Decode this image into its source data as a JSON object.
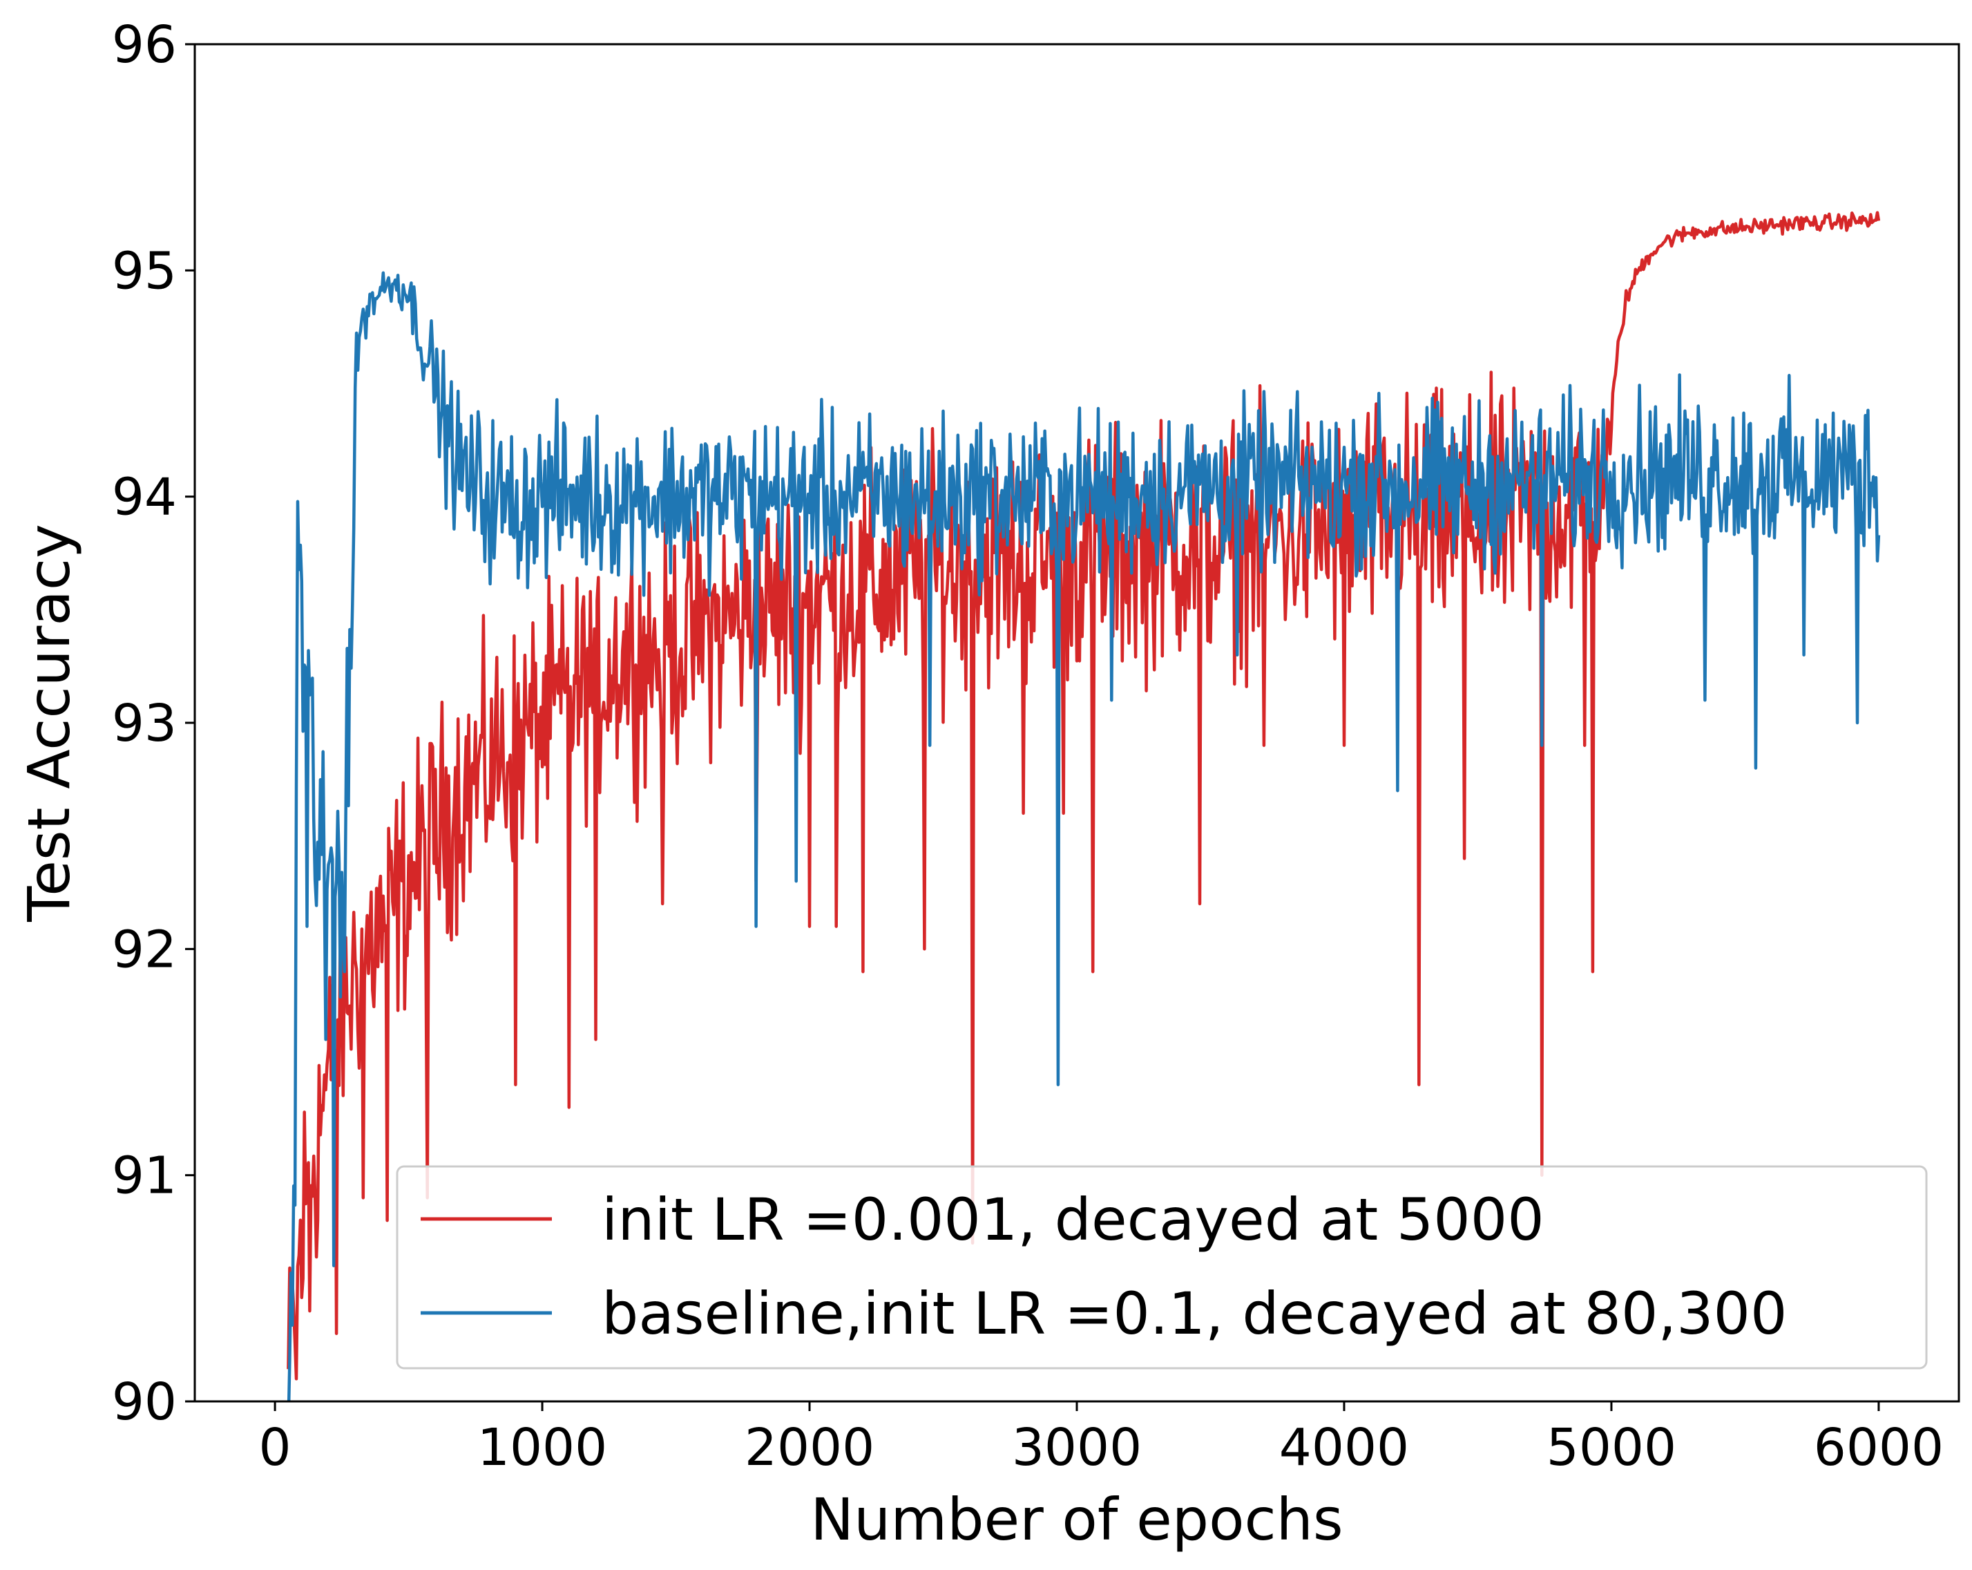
{
  "chart_data": {
    "type": "line",
    "title": "",
    "xlabel": "Number of epochs",
    "ylabel": "Test Accuracy",
    "xlim": [
      -300,
      6300
    ],
    "ylim": [
      90,
      96
    ],
    "xticks": [
      0,
      1000,
      2000,
      3000,
      4000,
      5000,
      6000
    ],
    "yticks": [
      90,
      91,
      92,
      93,
      94,
      95,
      96
    ],
    "grid": false,
    "legend_position": "lower-right",
    "series": [
      {
        "name": "init LR =0.001, decayed at 5000",
        "color": "#d62728",
        "x": [
          50,
          80,
          110,
          150,
          200,
          250,
          300,
          350,
          400,
          450,
          500,
          550,
          600,
          650,
          700,
          800,
          900,
          1000,
          1100,
          1200,
          1300,
          1400,
          1500,
          1600,
          1700,
          1800,
          1900,
          2000,
          2200,
          2400,
          2600,
          2800,
          3000,
          3200,
          3400,
          3600,
          3800,
          4000,
          4200,
          4400,
          4600,
          4800,
          4900,
          4950,
          5000,
          5020,
          5050,
          5100,
          5150,
          5200,
          5300,
          5400,
          5500,
          5600,
          5700,
          5800,
          5900,
          6000
        ],
        "y": [
          90.1,
          90.5,
          90.8,
          91.2,
          91.4,
          91.7,
          91.9,
          92.0,
          92.1,
          92.2,
          92.3,
          92.4,
          92.5,
          92.6,
          92.7,
          92.8,
          92.9,
          93.0,
          93.1,
          93.2,
          93.3,
          93.3,
          93.35,
          93.4,
          93.45,
          93.5,
          93.5,
          93.55,
          93.6,
          93.65,
          93.7,
          93.7,
          93.75,
          93.75,
          93.8,
          93.8,
          93.85,
          93.85,
          93.9,
          93.9,
          93.9,
          93.95,
          93.95,
          94.0,
          94.3,
          94.6,
          94.85,
          95.0,
          95.08,
          95.13,
          95.17,
          95.18,
          95.19,
          95.2,
          95.21,
          95.21,
          95.22,
          95.22
        ],
        "noise_amplitude": [
          0.4,
          0.6,
          0.6,
          0.55,
          0.5,
          0.45,
          0.45,
          0.45,
          0.45,
          0.45,
          0.45,
          0.45,
          0.45,
          0.45,
          0.45,
          0.45,
          0.45,
          0.45,
          0.45,
          0.45,
          0.45,
          0.45,
          0.45,
          0.45,
          0.45,
          0.45,
          0.45,
          0.45,
          0.45,
          0.45,
          0.45,
          0.45,
          0.45,
          0.45,
          0.45,
          0.45,
          0.45,
          0.45,
          0.45,
          0.45,
          0.45,
          0.45,
          0.45,
          0.3,
          0.1,
          0.06,
          0.04,
          0.03,
          0.03,
          0.03,
          0.03,
          0.03,
          0.03,
          0.03,
          0.03,
          0.03,
          0.03,
          0.03
        ],
        "spikes": [
          [
            80,
            90.1
          ],
          [
            130,
            90.4
          ],
          [
            160,
            90.8
          ],
          [
            230,
            90.3
          ],
          [
            330,
            90.9
          ],
          [
            420,
            90.8
          ],
          [
            570,
            90.9
          ],
          [
            900,
            91.4
          ],
          [
            1100,
            91.3
          ],
          [
            1200,
            91.6
          ],
          [
            1450,
            92.2
          ],
          [
            1800,
            92.3
          ],
          [
            2000,
            92.1
          ],
          [
            2100,
            92.1
          ],
          [
            2200,
            91.9
          ],
          [
            2430,
            92.0
          ],
          [
            2610,
            90.7
          ],
          [
            2800,
            92.6
          ],
          [
            2950,
            92.6
          ],
          [
            3060,
            91.9
          ],
          [
            3460,
            92.2
          ],
          [
            3700,
            92.9
          ],
          [
            4000,
            92.9
          ],
          [
            4280,
            91.4
          ],
          [
            4450,
            92.4
          ],
          [
            4740,
            91.0
          ],
          [
            4900,
            92.9
          ],
          [
            4930,
            91.9
          ]
        ]
      },
      {
        "name": "baseline,init LR =0.1, decayed at 80,300",
        "color": "#1f77b4",
        "x": [
          50,
          75,
          85,
          100,
          150,
          200,
          250,
          290,
          300,
          320,
          350,
          400,
          450,
          500,
          550,
          600,
          650,
          700,
          800,
          900,
          1000,
          1200,
          1400,
          1600,
          1800,
          2000,
          2500,
          3000,
          3500,
          4000,
          4500,
          5000,
          5500,
          6000
        ],
        "y": [
          90.0,
          91.0,
          94.0,
          93.4,
          92.6,
          92.3,
          92.4,
          93.5,
          94.5,
          94.75,
          94.85,
          94.92,
          94.95,
          94.9,
          94.7,
          94.5,
          94.25,
          94.1,
          94.0,
          93.95,
          94.0,
          94.0,
          94.0,
          94.0,
          94.0,
          94.0,
          94.0,
          94.0,
          94.05,
          94.05,
          94.05,
          94.1,
          94.1,
          94.1
        ],
        "noise_amplitude": [
          0.3,
          0.6,
          0.1,
          0.5,
          0.6,
          0.55,
          0.5,
          0.4,
          0.12,
          0.1,
          0.08,
          0.08,
          0.08,
          0.1,
          0.15,
          0.2,
          0.25,
          0.3,
          0.3,
          0.3,
          0.3,
          0.3,
          0.3,
          0.3,
          0.3,
          0.3,
          0.3,
          0.3,
          0.3,
          0.3,
          0.3,
          0.3,
          0.3,
          0.3
        ],
        "spikes": [
          [
            120,
            92.1
          ],
          [
            190,
            91.6
          ],
          [
            220,
            90.6
          ],
          [
            260,
            91.9
          ],
          [
            1800,
            92.1
          ],
          [
            1950,
            92.3
          ],
          [
            2450,
            92.9
          ],
          [
            2930,
            91.4
          ],
          [
            3130,
            93.1
          ],
          [
            3600,
            93.3
          ],
          [
            4200,
            92.7
          ],
          [
            4740,
            92.9
          ],
          [
            5350,
            93.1
          ],
          [
            5540,
            92.8
          ],
          [
            5720,
            93.3
          ],
          [
            5920,
            93.0
          ]
        ]
      }
    ]
  }
}
